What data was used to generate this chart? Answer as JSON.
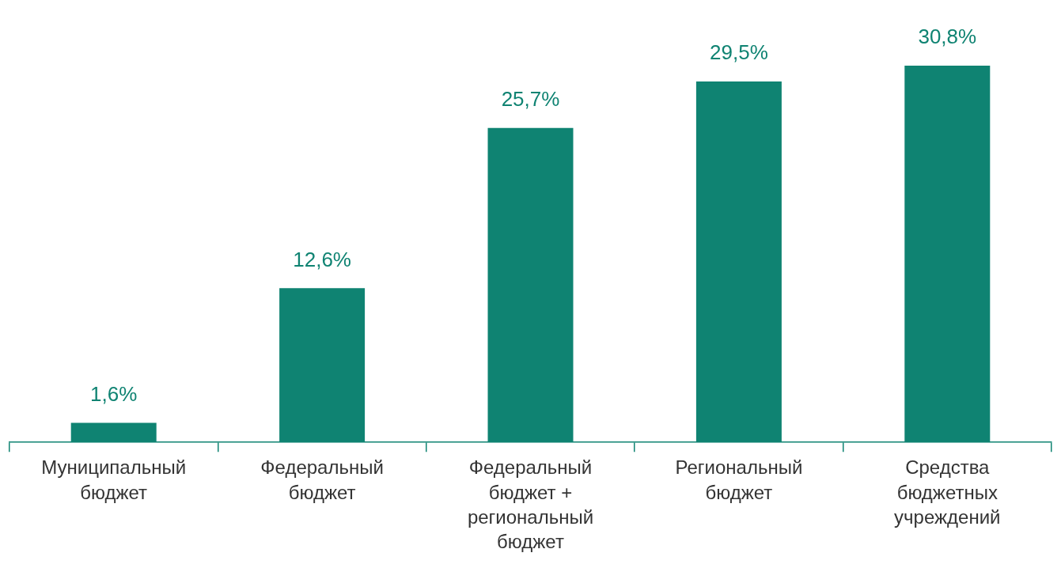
{
  "chart_data": {
    "type": "bar",
    "categories": [
      "Муниципальный бюджет",
      "Федеральный бюджет",
      "Федеральный бюджет + региональный бюджет",
      "Региональный бюджет",
      "Средства бюджетных учреждений"
    ],
    "values": [
      1.6,
      12.6,
      25.7,
      29.5,
      30.8
    ],
    "value_labels": [
      "1,6%",
      "12,6%",
      "25,7%",
      "29,5%",
      "30,8%"
    ],
    "color": "#0f8372"
  }
}
